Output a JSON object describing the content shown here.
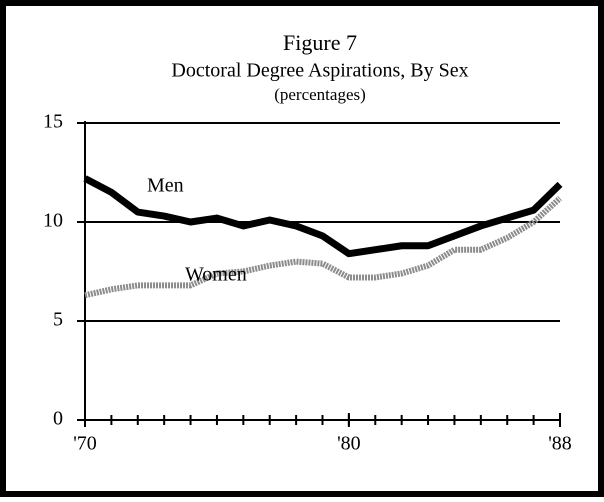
{
  "chart_data": {
    "type": "line",
    "title": "Figure 7",
    "subtitle": "Doctoral Degree Aspirations, By Sex",
    "unit_label": "(percentages)",
    "x": [
      1970,
      1971,
      1972,
      1973,
      1974,
      1975,
      1976,
      1977,
      1978,
      1979,
      1980,
      1981,
      1982,
      1983,
      1984,
      1985,
      1986,
      1987,
      1988
    ],
    "xlim": [
      1970,
      1988
    ],
    "xticks": [
      {
        "value": 1970,
        "label": "'70"
      },
      {
        "value": 1980,
        "label": "'80"
      },
      {
        "value": 1988,
        "label": "'88"
      }
    ],
    "ylim": [
      0,
      15
    ],
    "yticks": [
      0,
      5,
      10,
      15
    ],
    "grid": true,
    "series": [
      {
        "name": "Men",
        "color": "#000000",
        "values": [
          12.2,
          11.5,
          10.5,
          10.3,
          10.0,
          10.2,
          9.8,
          10.1,
          9.8,
          9.3,
          8.4,
          8.6,
          8.8,
          8.8,
          9.3,
          9.8,
          10.2,
          10.6,
          11.9
        ]
      },
      {
        "name": "Women",
        "color": "#8c8c8c",
        "values": [
          6.3,
          6.6,
          6.8,
          6.8,
          6.8,
          7.4,
          7.5,
          7.8,
          8.0,
          7.9,
          7.2,
          7.2,
          7.4,
          7.8,
          8.6,
          8.6,
          9.2,
          10.0,
          11.2
        ]
      }
    ]
  }
}
